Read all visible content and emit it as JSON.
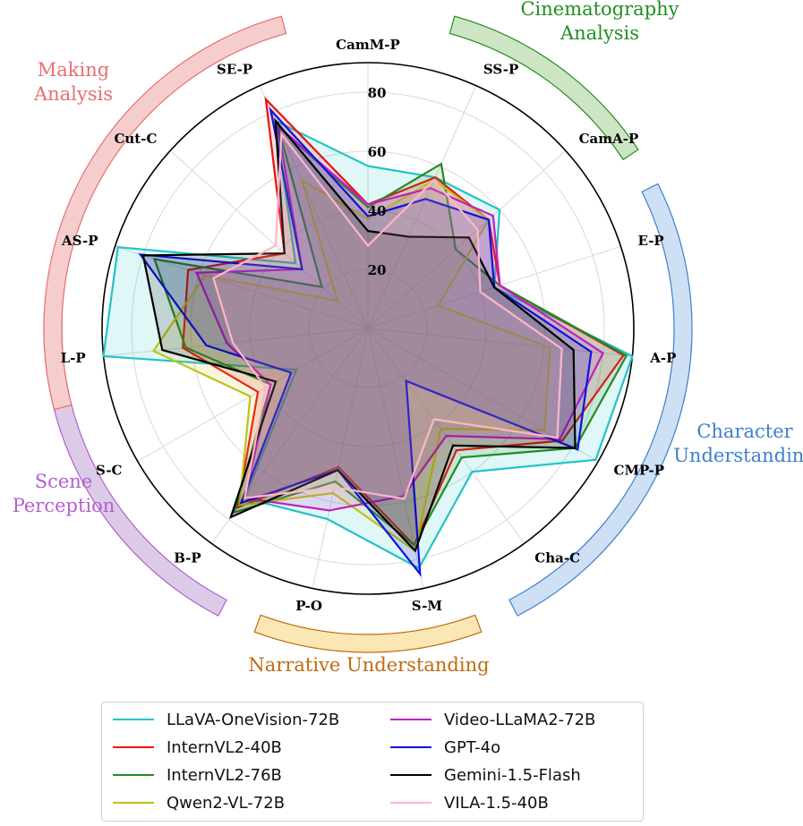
{
  "chart_data": {
    "type": "radar",
    "axes": [
      "CamM-P",
      "SS-P",
      "CamA-P",
      "E-P",
      "A-P",
      "CMP-P",
      "Cha-C",
      "S-M",
      "P-O",
      "B-P",
      "S-C",
      "L-P",
      "AS-P",
      "Cut-C",
      "SE-P"
    ],
    "radial_ticks": [
      20,
      40,
      60,
      80
    ],
    "rlim": [
      0,
      90
    ],
    "grid": true,
    "legend_position": "bottom",
    "groups": [
      {
        "name": "Cinematography\nAnalysis",
        "color": "#1f8f1f",
        "band_color": "#cde5c3",
        "axes": [
          "SS-P",
          "CamA-P"
        ]
      },
      {
        "name": "Character\nUnderstanding",
        "color": "#3d7fcf",
        "band_color": "#cfe0f5",
        "axes": [
          "E-P",
          "A-P",
          "CMP-P",
          "Cha-C"
        ]
      },
      {
        "name": "Narrative Understanding",
        "color": "#c06a10",
        "band_color": "#fbe7b3",
        "axes": [
          "S-M",
          "P-O"
        ]
      },
      {
        "name": "Scene\nPerception",
        "color": "#b25fd0",
        "band_color": "#dccbe6",
        "axes": [
          "B-P",
          "S-C",
          "L-P"
        ]
      },
      {
        "name": "Making\nAnalysis",
        "color": "#e86e6e",
        "band_color": "#f5cdcd",
        "axes": [
          "AS-P",
          "Cut-C",
          "SE-P"
        ]
      }
    ],
    "series": [
      {
        "name": "LLaVA-OneVision-72B",
        "color": "#22c3c8",
        "values": [
          55,
          56,
          60,
          45,
          90,
          89,
          60,
          83,
          66,
          71,
          28,
          90,
          89,
          33,
          77
        ]
      },
      {
        "name": "InternVL2-40B",
        "color": "#ee1111",
        "values": [
          42,
          56,
          55,
          47,
          87,
          76,
          51,
          75,
          48,
          75,
          43,
          63,
          64,
          38,
          85
        ]
      },
      {
        "name": "InternVL2-76B",
        "color": "#228a22",
        "values": [
          41,
          61,
          40,
          47,
          88,
          81,
          54,
          75,
          53,
          77,
          38,
          62,
          76,
          21,
          75
        ]
      },
      {
        "name": "Qwen2-VL-72B",
        "color": "#c0c01a",
        "values": [
          37,
          55,
          55,
          25,
          62,
          69,
          42,
          77,
          57,
          74,
          46,
          73,
          58,
          14,
          55
        ]
      },
      {
        "name": "Video-LLaMA2-72B",
        "color": "#c020c0",
        "values": [
          42,
          52,
          57,
          47,
          80,
          75,
          45,
          58,
          63,
          71,
          38,
          48,
          61,
          30,
          75
        ]
      },
      {
        "name": "GPT-4o",
        "color": "#1111dd",
        "values": [
          38,
          48,
          55,
          45,
          76,
          82,
          22,
          85,
          49,
          73,
          30,
          55,
          81,
          30,
          81
        ]
      },
      {
        "name": "Gemini-1.5-Flash",
        "color": "#000000",
        "values": [
          33,
          34,
          46,
          45,
          70,
          81,
          49,
          77,
          49,
          79,
          36,
          70,
          80,
          38,
          77
        ]
      },
      {
        "name": "VILA-1.5-40B",
        "color": "#ffb6c8",
        "values": [
          28,
          55,
          50,
          40,
          66,
          74,
          38,
          59,
          55,
          71,
          40,
          46,
          55,
          42,
          72
        ]
      }
    ]
  }
}
